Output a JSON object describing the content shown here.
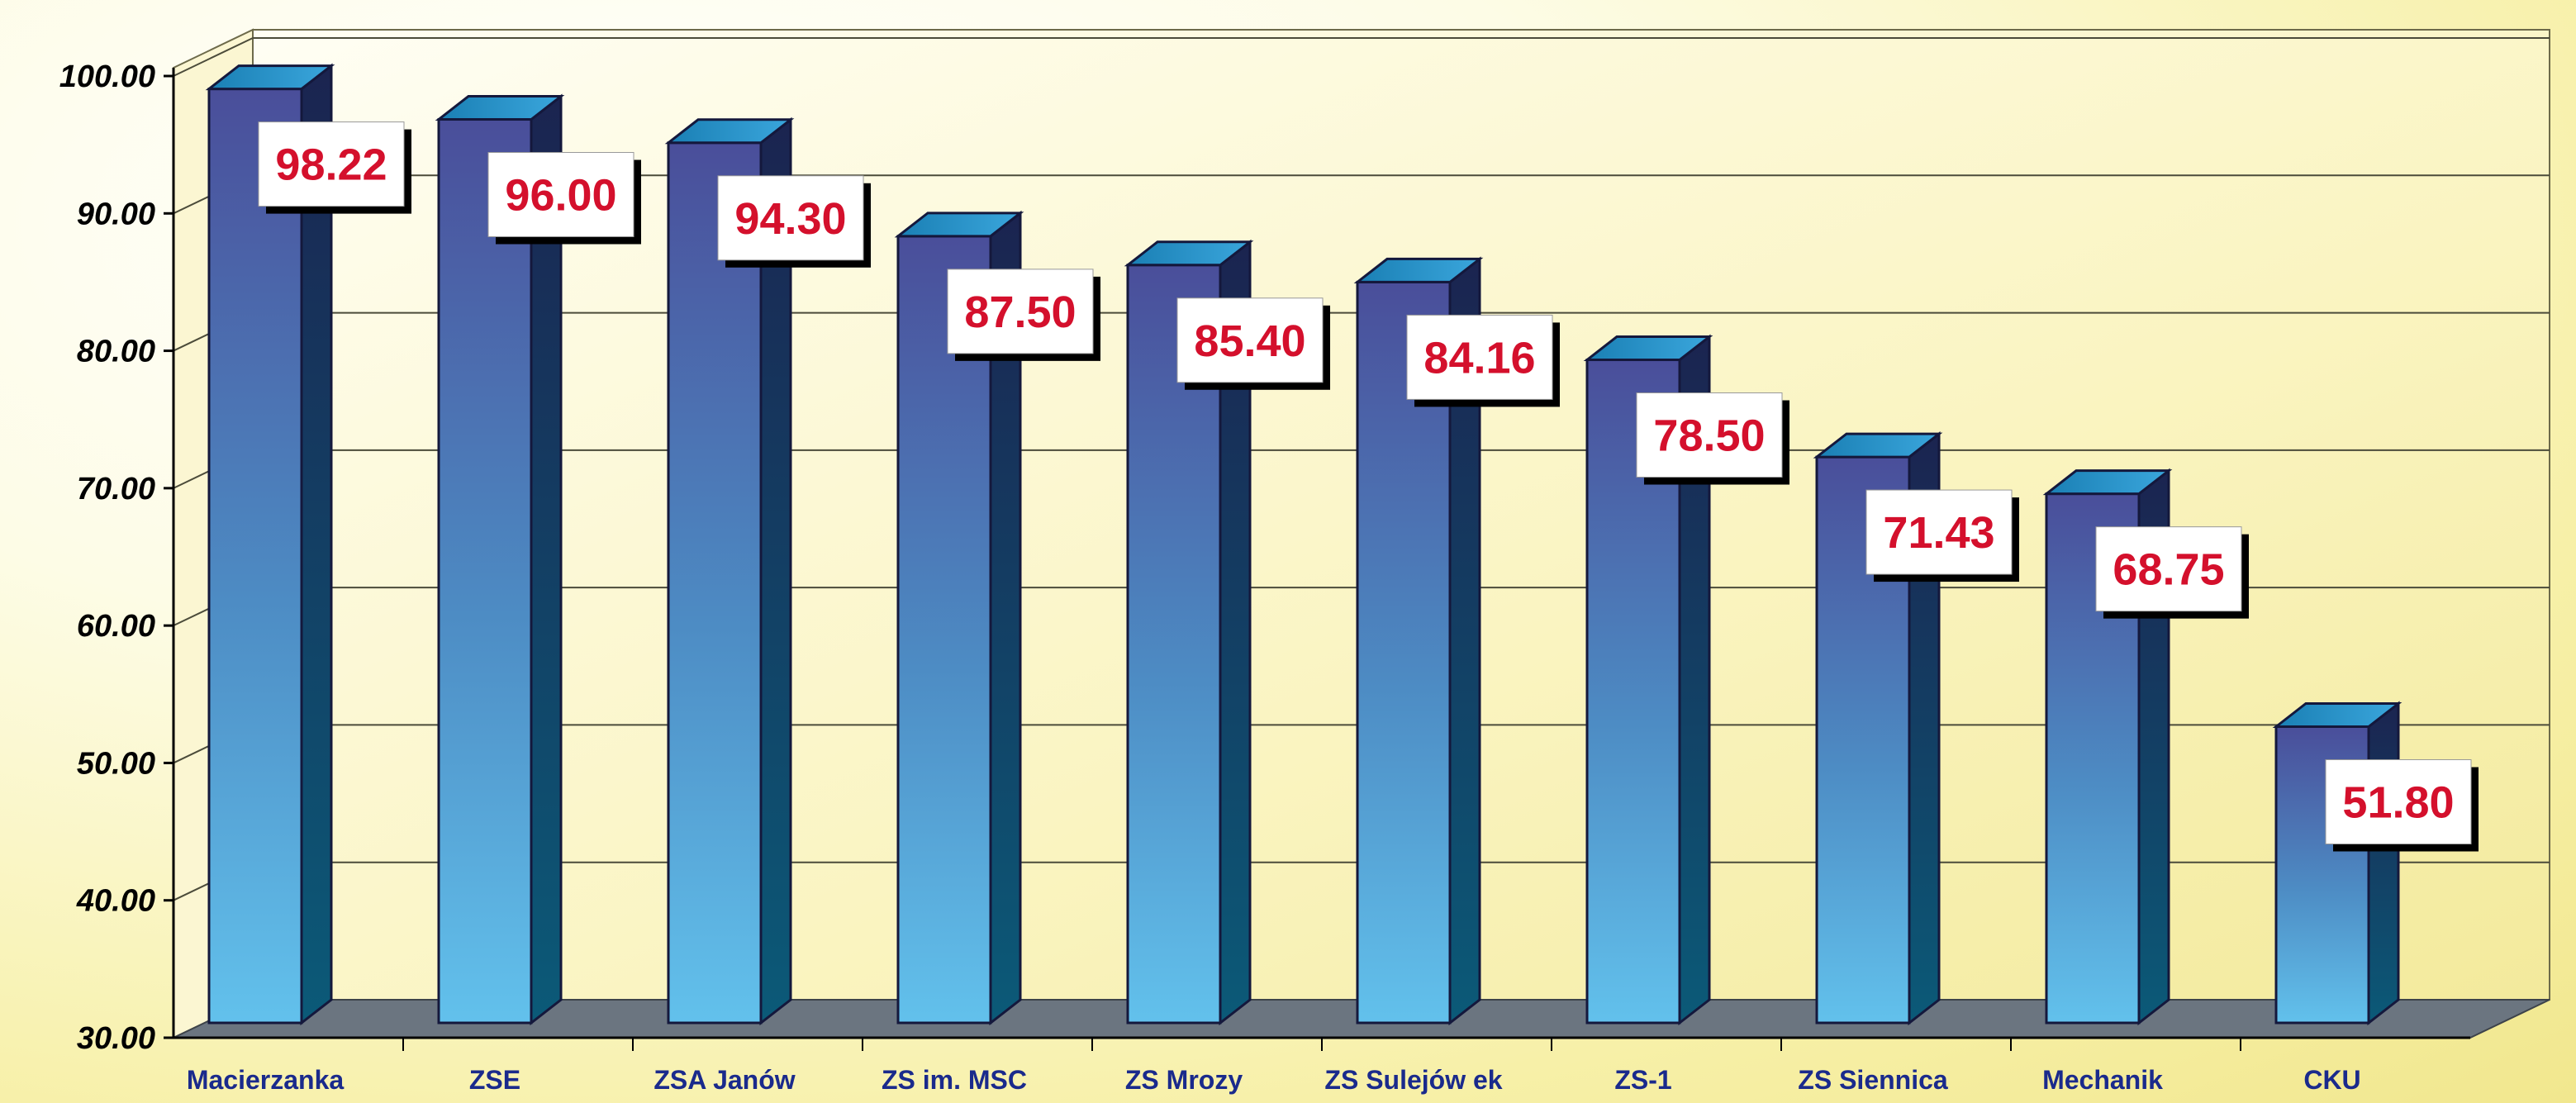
{
  "chart_data": {
    "type": "bar",
    "title": "",
    "xlabel": "",
    "ylabel": "",
    "ylim": [
      30,
      100
    ],
    "yticks": [
      "30.00",
      "40.00",
      "50.00",
      "60.00",
      "70.00",
      "80.00",
      "90.00",
      "100.00"
    ],
    "grid": true,
    "categories": [
      "Macierzanka",
      "ZSE",
      "ZSA Janów",
      "ZS im. MSC",
      "ZS Mrozy",
      "ZS Sulejów ek",
      "ZS-1",
      "ZS Siennica",
      "Mechanik",
      "CKU"
    ],
    "values": [
      98.22,
      96.0,
      94.3,
      87.5,
      85.4,
      84.16,
      78.5,
      71.43,
      68.75,
      51.8
    ],
    "value_labels": [
      "98.22",
      "96.00",
      "94.30",
      "87.50",
      "85.40",
      "84.16",
      "78.50",
      "71.43",
      "68.75",
      "51.80"
    ],
    "colors": {
      "bar_top": "#4a4e9a",
      "bar_bottom": "#62c1ec",
      "label_text": "#d4102c",
      "floor": "#6b7580",
      "wall": "#f7f0a8"
    }
  }
}
